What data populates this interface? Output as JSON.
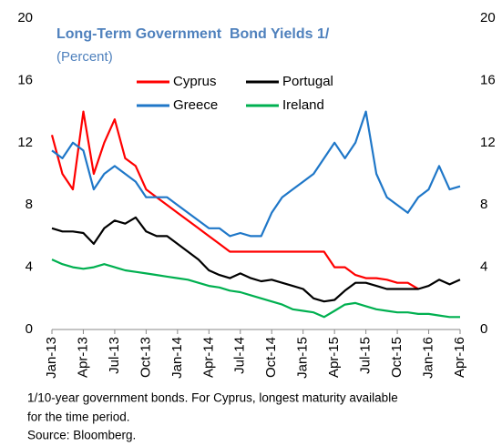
{
  "chart_data": {
    "type": "line",
    "title": "Long-Term Government  Bond Yields 1/",
    "subtitle": "(Percent)",
    "categories": [
      "Jan-13",
      null,
      null,
      "Apr-13",
      null,
      null,
      "Jul-13",
      null,
      null,
      "Oct-13",
      null,
      null,
      "Jan-14",
      null,
      null,
      "Apr-14",
      null,
      null,
      "Jul-14",
      null,
      null,
      "Oct-14",
      null,
      null,
      "Jan-15",
      null,
      null,
      "Apr-15",
      null,
      null,
      "Jul-15",
      null,
      null,
      "Oct-15",
      null,
      null,
      "Jan-16",
      null,
      null,
      "Apr-16"
    ],
    "series": [
      {
        "name": "Cyprus",
        "color": "#ff0000",
        "values": [
          12.5,
          10,
          9,
          14,
          10,
          12,
          13.5,
          11,
          10.5,
          9,
          8.5,
          8,
          7.5,
          7,
          6.5,
          6,
          5.5,
          5,
          5,
          5,
          5,
          5,
          5,
          5,
          5,
          5,
          5,
          4,
          4,
          3.5,
          3.3,
          3.3,
          3.2,
          3,
          3,
          2.6,
          null,
          null,
          null,
          null
        ]
      },
      {
        "name": "Portugal",
        "color": "#000000",
        "values": [
          6.5,
          6.3,
          6.3,
          6.2,
          5.5,
          6.5,
          7,
          6.8,
          7.2,
          6.3,
          6,
          6,
          5.5,
          5,
          4.5,
          3.8,
          3.5,
          3.3,
          3.6,
          3.3,
          3.1,
          3.2,
          3,
          2.8,
          2.6,
          2,
          1.8,
          1.9,
          2.5,
          3,
          3,
          2.8,
          2.6,
          2.6,
          2.6,
          2.6,
          2.8,
          3.2,
          2.9,
          3.2
        ]
      },
      {
        "name": "Greece",
        "color": "#1f77c8",
        "values": [
          11.5,
          11,
          12,
          11.5,
          9,
          10,
          10.5,
          10,
          9.5,
          8.5,
          8.5,
          8.5,
          8,
          7.5,
          7,
          6.5,
          6.5,
          6,
          6.2,
          6,
          6,
          7.5,
          8.5,
          9,
          9.5,
          10,
          11,
          12,
          11,
          12,
          14,
          10,
          8.5,
          8,
          7.5,
          8.5,
          9,
          10.5,
          9,
          9.2
        ]
      },
      {
        "name": "Ireland",
        "color": "#00b050",
        "values": [
          4.5,
          4.2,
          4,
          3.9,
          4,
          4.2,
          4,
          3.8,
          3.7,
          3.6,
          3.5,
          3.4,
          3.3,
          3.2,
          3,
          2.8,
          2.7,
          2.5,
          2.4,
          2.2,
          2,
          1.8,
          1.6,
          1.3,
          1.2,
          1.1,
          0.8,
          1.2,
          1.6,
          1.7,
          1.5,
          1.3,
          1.2,
          1.1,
          1.1,
          1,
          1,
          0.9,
          0.8,
          0.8
        ]
      }
    ],
    "ylim": [
      0,
      20
    ],
    "yticks": [
      0,
      4,
      8,
      12,
      16,
      20
    ],
    "y2lim": [
      0,
      20
    ],
    "y2ticks": [
      0,
      4,
      8,
      12,
      16,
      20
    ],
    "grid": false,
    "notes": [
      "1/10-year government bonds. For Cyprus, longest maturity available",
      "for the time period.",
      "Source: Bloomberg."
    ]
  }
}
